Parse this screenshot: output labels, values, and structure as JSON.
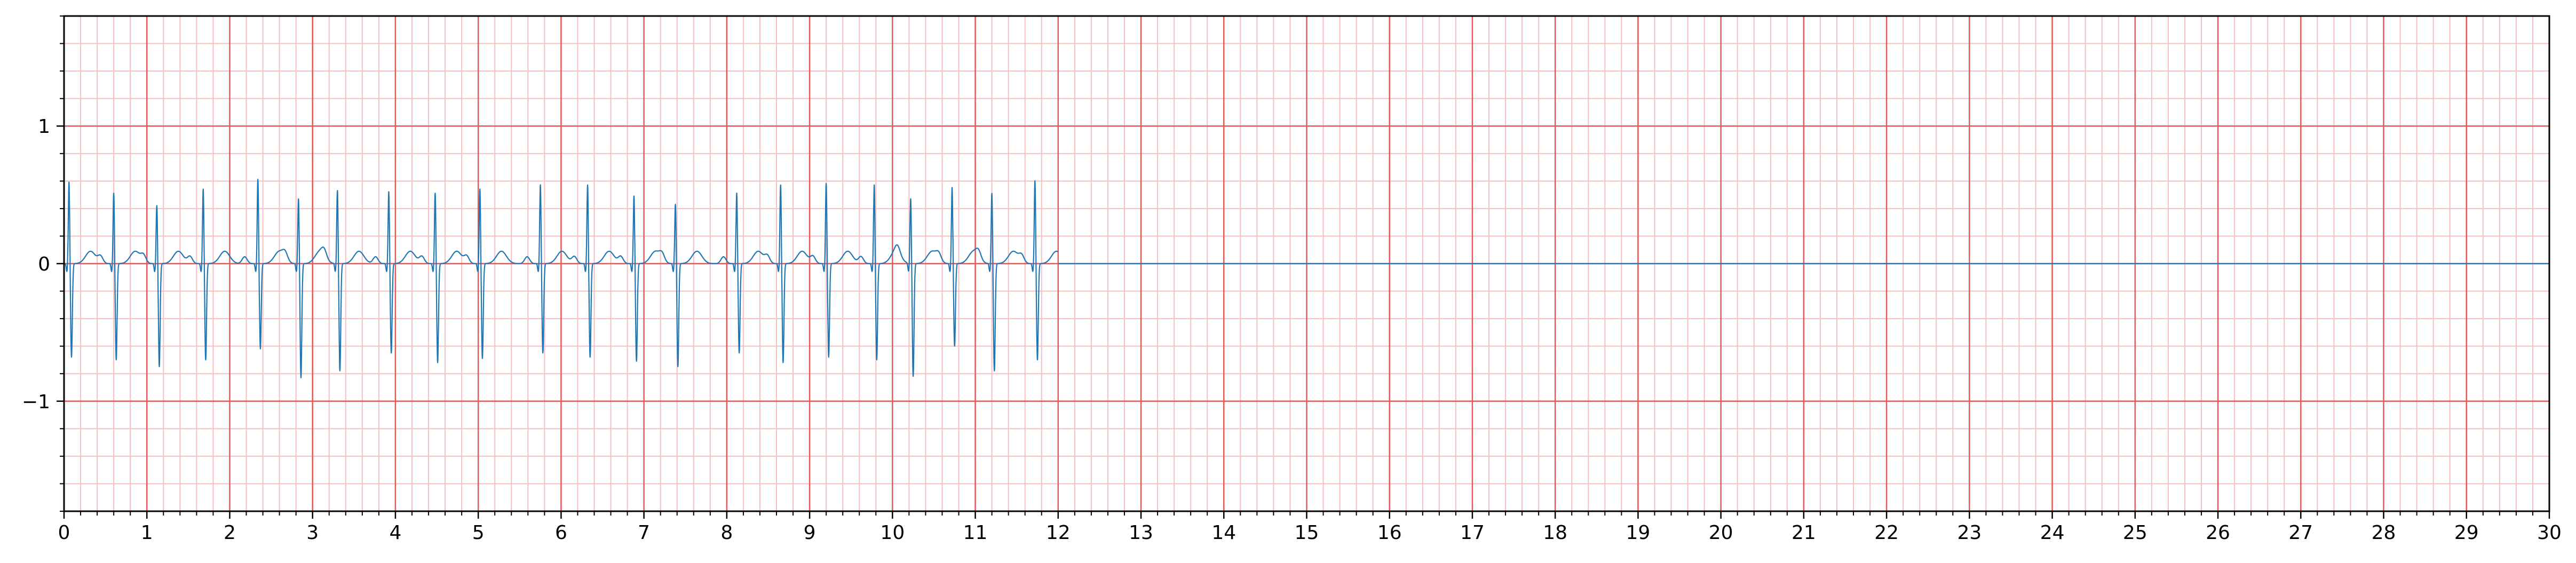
{
  "chart_data": {
    "type": "line",
    "title": "",
    "xlabel": "",
    "ylabel": "",
    "xlim": [
      0,
      30
    ],
    "ylim": [
      -1.8,
      1.8
    ],
    "x_ticks": [
      "0",
      "1",
      "2",
      "3",
      "4",
      "5",
      "6",
      "7",
      "8",
      "9",
      "10",
      "11",
      "12",
      "13",
      "14",
      "15",
      "16",
      "17",
      "18",
      "19",
      "20",
      "21",
      "22",
      "23",
      "24",
      "25",
      "26",
      "27",
      "28",
      "29",
      "30"
    ],
    "y_ticks": [
      {
        "value": 1,
        "label": "1"
      },
      {
        "value": 0,
        "label": "0"
      },
      {
        "value": -1,
        "label": "−1"
      }
    ],
    "grid": {
      "major_step": 1,
      "minor_step": 0.2,
      "major_color": "#e55b5b",
      "minor_color": "#f7c0c0"
    },
    "line_color": "#1f77b4",
    "signal_end": 12.0,
    "series": [
      {
        "values_description_note": "",
        "beats": [
          {
            "t": 0.06,
            "r": 0.6,
            "s": -0.68
          },
          {
            "t": 0.6,
            "r": 0.52,
            "s": -0.7
          },
          {
            "t": 1.12,
            "r": 0.43,
            "s": -0.75
          },
          {
            "t": 1.68,
            "r": 0.55,
            "s": -0.7
          },
          {
            "t": 2.34,
            "r": 0.62,
            "s": -0.62
          },
          {
            "t": 2.83,
            "r": 0.48,
            "s": -0.83
          },
          {
            "t": 3.3,
            "r": 0.54,
            "s": -0.78
          },
          {
            "t": 3.92,
            "r": 0.53,
            "s": -0.65
          },
          {
            "t": 4.48,
            "r": 0.52,
            "s": -0.72
          },
          {
            "t": 5.02,
            "r": 0.55,
            "s": -0.69
          },
          {
            "t": 5.75,
            "r": 0.58,
            "s": -0.65
          },
          {
            "t": 6.32,
            "r": 0.58,
            "s": -0.68
          },
          {
            "t": 6.88,
            "r": 0.5,
            "s": -0.71
          },
          {
            "t": 7.38,
            "r": 0.44,
            "s": -0.75
          },
          {
            "t": 8.12,
            "r": 0.52,
            "s": -0.65
          },
          {
            "t": 8.65,
            "r": 0.58,
            "s": -0.72
          },
          {
            "t": 9.2,
            "r": 0.59,
            "s": -0.68
          },
          {
            "t": 9.78,
            "r": 0.58,
            "s": -0.7
          },
          {
            "t": 10.22,
            "r": 0.48,
            "s": -0.82
          },
          {
            "t": 10.72,
            "r": 0.56,
            "s": -0.6
          },
          {
            "t": 11.2,
            "r": 0.52,
            "s": -0.78
          },
          {
            "t": 11.72,
            "r": 0.61,
            "s": -0.7
          }
        ]
      }
    ]
  }
}
